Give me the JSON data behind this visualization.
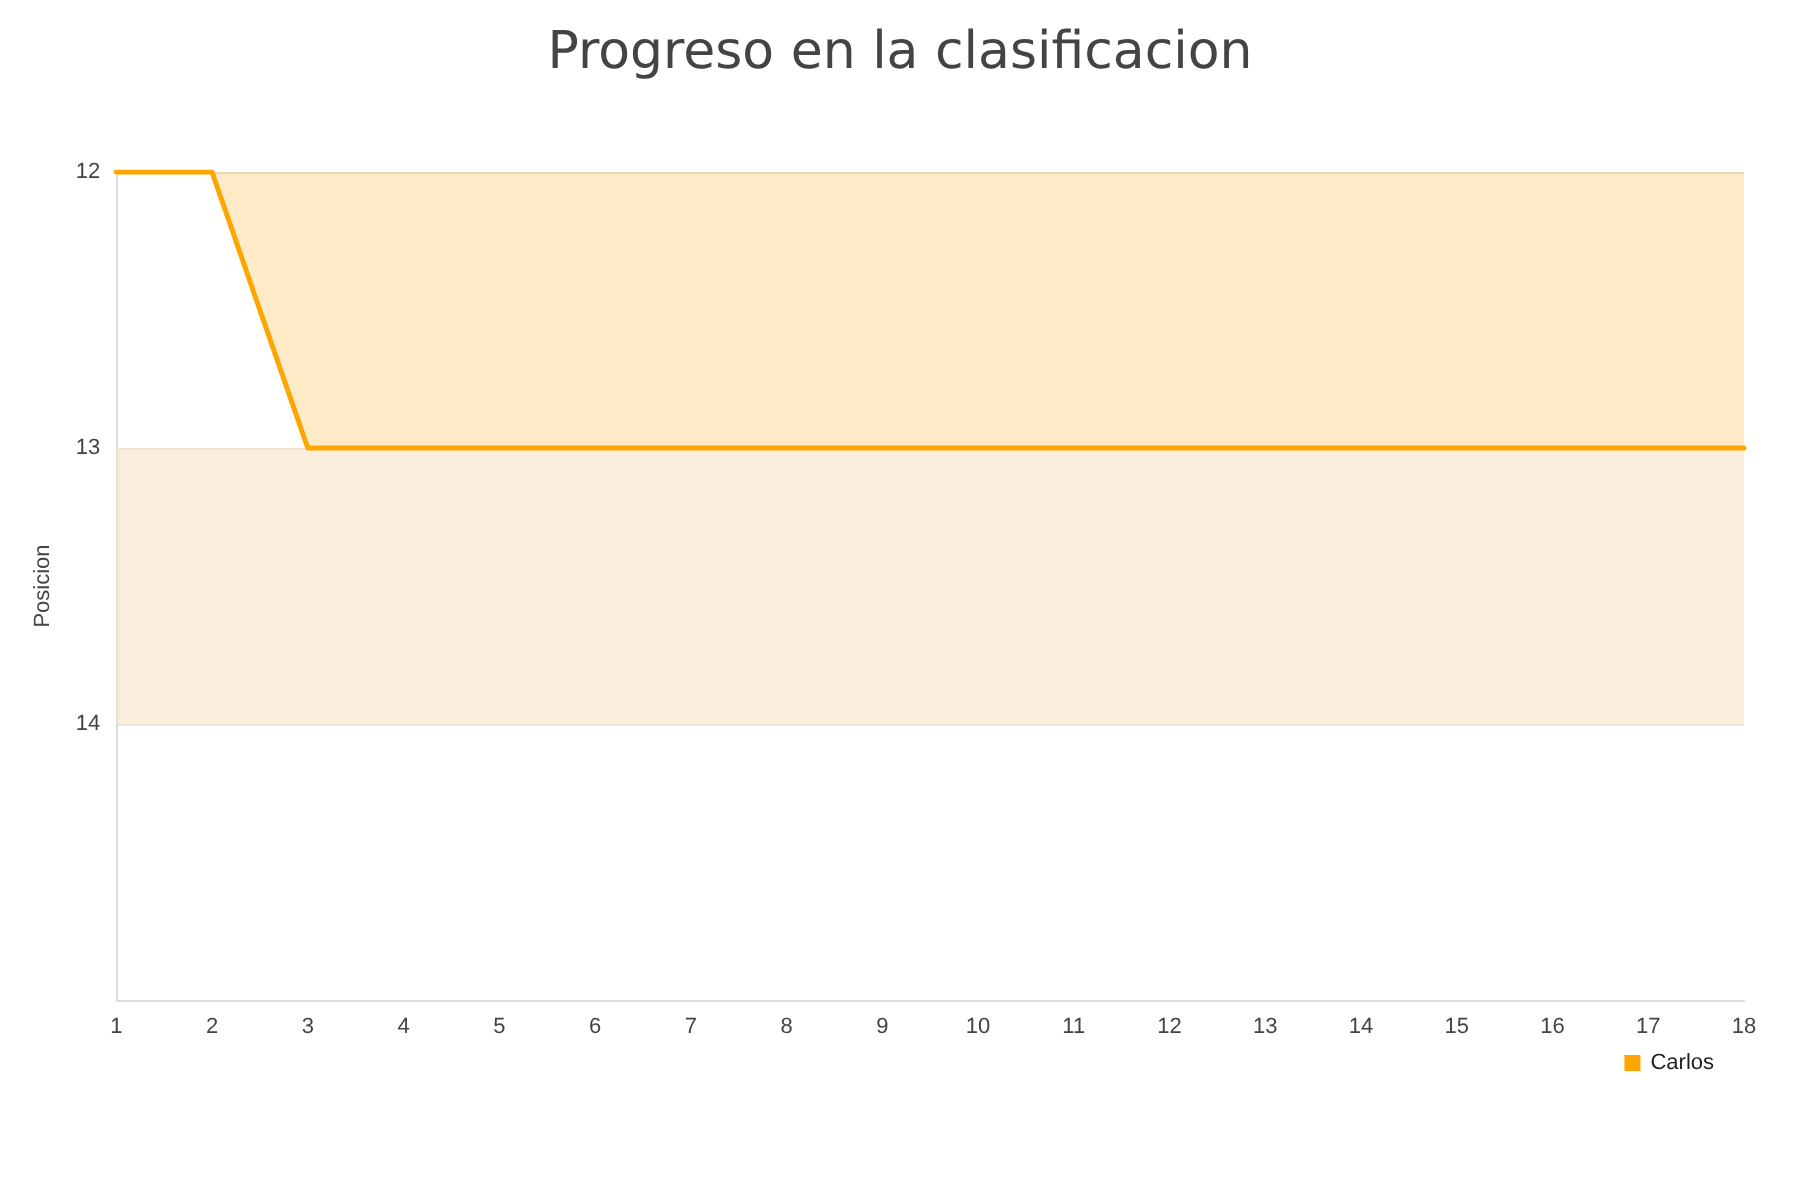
{
  "chart_data": {
    "type": "area",
    "title": "Progreso en la clasificacion",
    "ylabel": "Posicion",
    "x": [
      1,
      2,
      3,
      4,
      5,
      6,
      7,
      8,
      9,
      10,
      11,
      12,
      13,
      14,
      15,
      16,
      17,
      18
    ],
    "series": [
      {
        "name": "Carlos",
        "color": "#ffa500",
        "values": [
          12,
          12,
          13,
          13,
          13,
          13,
          13,
          13,
          13,
          13,
          13,
          13,
          13,
          13,
          13,
          13,
          13,
          13
        ]
      }
    ],
    "xlim": [
      1,
      18
    ],
    "xticks": [
      1,
      2,
      3,
      4,
      5,
      6,
      7,
      8,
      9,
      10,
      11,
      12,
      13,
      14,
      15,
      16,
      17,
      18
    ],
    "ylim": [
      15,
      12
    ],
    "yticks": [
      12,
      13,
      14
    ],
    "bands": [
      {
        "axis": "y",
        "from": 13,
        "to": 14,
        "color": "#f5e3c3"
      }
    ],
    "grid": "y",
    "legend": "bottom right",
    "marker": "none",
    "line_style": "solid"
  }
}
